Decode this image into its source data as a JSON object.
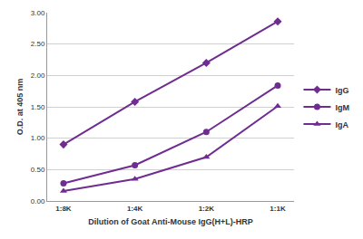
{
  "chart_data": {
    "type": "line",
    "x_label": "Dilution of Goat Anti-Mouse IgG(H+L)-HRP",
    "y_label": "O.D. at 405 nm",
    "categories": [
      "1:8K",
      "1:4K",
      "1:2K",
      "1:1K"
    ],
    "series": [
      {
        "name": "IgG",
        "color": "#6f2c91",
        "marker": "diamond",
        "values": [
          0.9,
          1.58,
          2.2,
          2.86
        ]
      },
      {
        "name": "IgM",
        "color": "#6f2c91",
        "marker": "circle",
        "values": [
          0.28,
          0.57,
          1.1,
          1.84
        ]
      },
      {
        "name": "IgA",
        "color": "#6f2c91",
        "marker": "triangle-up",
        "values": [
          0.16,
          0.35,
          0.7,
          1.51
        ]
      }
    ],
    "ylim": [
      0,
      3
    ],
    "yticks": [
      {
        "value": 0,
        "label": "0.00"
      },
      {
        "value": 0.5,
        "label": "0.50"
      },
      {
        "value": 1,
        "label": "1.00"
      },
      {
        "value": 1.5,
        "label": "1.50"
      },
      {
        "value": 2,
        "label": "2.00"
      },
      {
        "value": 2.5,
        "label": "2.50"
      },
      {
        "value": 3,
        "label": "3.00"
      }
    ],
    "grid": true,
    "legend": "right"
  }
}
